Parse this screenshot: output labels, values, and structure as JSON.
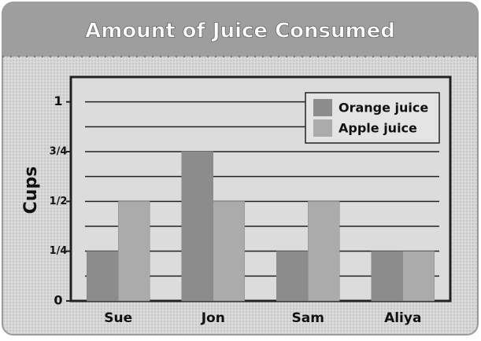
{
  "chart_data": {
    "type": "bar",
    "title": "Amount of Juice Consumed",
    "y_label": "Cups",
    "categories": [
      "Sue",
      "Jon",
      "Sam",
      "Aliya"
    ],
    "series": [
      {
        "name": "Orange juice",
        "color": "#8c8c8c",
        "values": [
          0.25,
          0.75,
          0.25,
          0.25
        ]
      },
      {
        "name": "Apple juice",
        "color": "#ababab",
        "values": [
          0.5,
          0.5,
          0.5,
          0.25
        ]
      }
    ],
    "ylim": [
      0,
      1.125
    ],
    "yticks": [
      0,
      {
        "value": 0.25,
        "label": "1/4"
      },
      {
        "value": 0.5,
        "label": "1/2"
      },
      {
        "value": 0.75,
        "label": "3/4"
      },
      1
    ],
    "minor_yticks": [
      0.125,
      0.375,
      0.625,
      0.875
    ],
    "grid": true,
    "legend": "upper right"
  }
}
